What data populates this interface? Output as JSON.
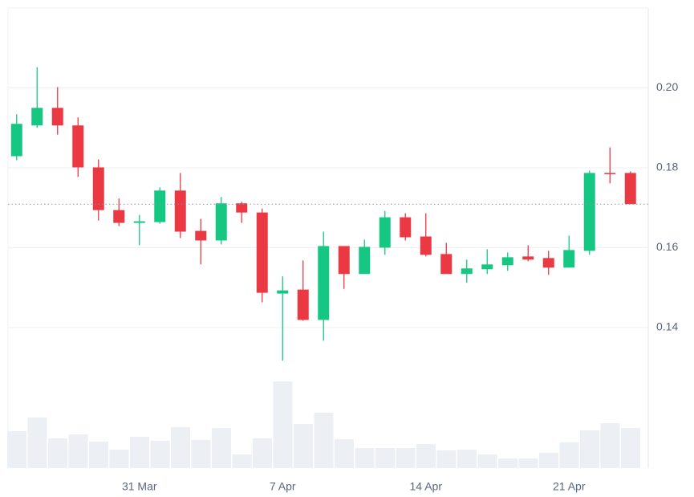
{
  "chart_data": {
    "type": "candlestick",
    "categories": [
      null,
      null,
      null,
      null,
      null,
      null,
      "31 Mar",
      null,
      null,
      null,
      null,
      null,
      null,
      "7 Apr",
      null,
      null,
      null,
      null,
      null,
      null,
      "14 Apr",
      null,
      null,
      null,
      null,
      null,
      null,
      "21 Apr",
      null,
      null,
      null
    ],
    "open": [
      0.1829,
      0.1906,
      0.195,
      0.1906,
      0.1801,
      0.1694,
      0.1662,
      0.1664,
      0.1743,
      0.1642,
      0.1618,
      0.1711,
      0.1688,
      0.1485,
      0.1495,
      0.1419,
      0.1604,
      0.1534,
      0.16,
      0.1676,
      0.1628,
      0.1584,
      0.1534,
      0.1546,
      0.1556,
      0.1578,
      0.1574,
      0.155,
      0.1592,
      0.1787,
      0.1787
    ],
    "high": [
      0.1934,
      0.2052,
      0.2002,
      0.1926,
      0.1821,
      0.1723,
      0.1682,
      0.1751,
      0.1787,
      0.1672,
      0.1727,
      0.1715,
      0.1698,
      0.1528,
      0.1568,
      0.164,
      0.1604,
      0.162,
      0.1692,
      0.1686,
      0.1686,
      0.1612,
      0.157,
      0.1596,
      0.1588,
      0.1606,
      0.1592,
      0.163,
      0.1793,
      0.1851,
      0.1791
    ],
    "low": [
      0.1819,
      0.19,
      0.1883,
      0.1777,
      0.1668,
      0.1654,
      0.1606,
      0.166,
      0.1624,
      0.1558,
      0.1608,
      0.1662,
      0.1463,
      0.1317,
      0.1417,
      0.1367,
      0.1497,
      0.1534,
      0.1582,
      0.1618,
      0.1578,
      0.1534,
      0.1512,
      0.1534,
      0.1542,
      0.1566,
      0.1532,
      0.155,
      0.1582,
      0.1761,
      0.1709
    ],
    "close": [
      0.191,
      0.195,
      0.1906,
      0.1801,
      0.1694,
      0.1662,
      0.1666,
      0.1743,
      0.164,
      0.1618,
      0.1711,
      0.1688,
      0.1487,
      0.1493,
      0.1419,
      0.1604,
      0.1534,
      0.1602,
      0.1676,
      0.1626,
      0.1582,
      0.1534,
      0.1548,
      0.1558,
      0.1576,
      0.157,
      0.155,
      0.1594,
      0.1787,
      0.1785,
      0.1709
    ],
    "volume": [
      46,
      63,
      37,
      42,
      33,
      23,
      39,
      34,
      51,
      35,
      50,
      17,
      37,
      108,
      55,
      69,
      36,
      25,
      25,
      25,
      30,
      22,
      23,
      17,
      12,
      12,
      19,
      32,
      47,
      56,
      50
    ],
    "up_color": "#16c784",
    "down_color": "#ea3943",
    "volume_color": "#eceff3",
    "ylim": [
      0.105,
      0.22
    ],
    "yticks": [
      {
        "value": 0.2,
        "label": "0.20"
      },
      0.18,
      0.16,
      0.14
    ],
    "volume_ylim": [
      0,
      120
    ],
    "grid": true
  }
}
